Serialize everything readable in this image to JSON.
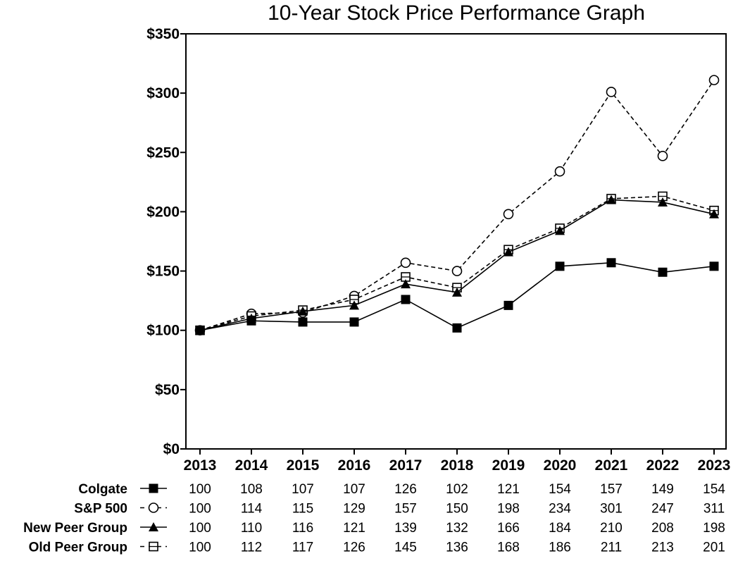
{
  "chart_data": {
    "type": "line",
    "title": "10-Year Stock Price Performance Graph",
    "xlabel": "",
    "ylabel": "",
    "x": [
      "2013",
      "2014",
      "2015",
      "2016",
      "2017",
      "2018",
      "2019",
      "2020",
      "2021",
      "2022",
      "2023"
    ],
    "ylim": [
      0,
      350
    ],
    "y_ticks": [
      0,
      50,
      100,
      150,
      200,
      250,
      300,
      350
    ],
    "y_tick_labels": [
      "$0",
      "$50",
      "$100",
      "$150",
      "$200",
      "$250",
      "$300",
      "$350"
    ],
    "grid": false,
    "legend": "table below chart",
    "series": [
      {
        "name": "Colgate",
        "marker": "filled-square",
        "line": "solid",
        "color": "#000000",
        "values": [
          100,
          108,
          107,
          107,
          126,
          102,
          121,
          154,
          157,
          149,
          154
        ]
      },
      {
        "name": "S&P 500",
        "marker": "open-circle",
        "line": "dashed",
        "color": "#000000",
        "values": [
          100,
          114,
          115,
          129,
          157,
          150,
          198,
          234,
          301,
          247,
          311
        ]
      },
      {
        "name": "New Peer Group",
        "marker": "filled-triangle",
        "line": "solid",
        "color": "#000000",
        "values": [
          100,
          110,
          116,
          121,
          139,
          132,
          166,
          184,
          210,
          208,
          198
        ]
      },
      {
        "name": "Old Peer Group",
        "marker": "open-square",
        "line": "dashed",
        "color": "#000000",
        "values": [
          100,
          112,
          117,
          126,
          145,
          136,
          168,
          186,
          211,
          213,
          201
        ]
      }
    ]
  }
}
